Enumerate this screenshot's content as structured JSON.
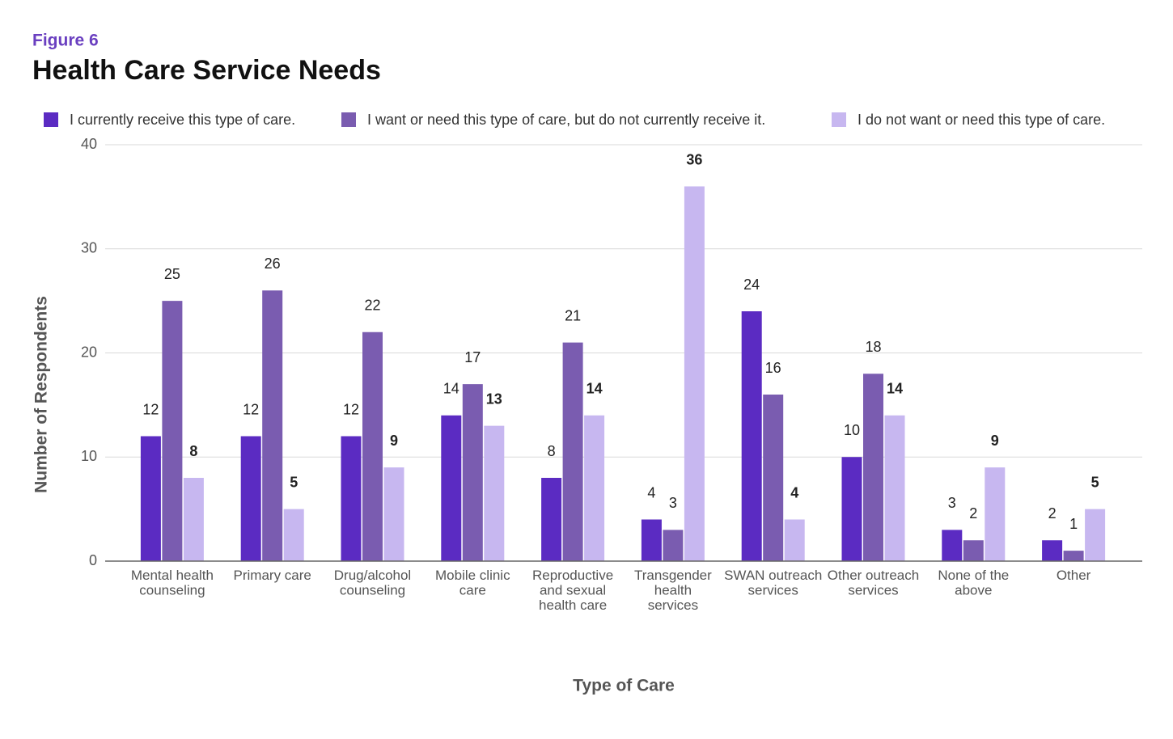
{
  "chart_data": {
    "type": "bar",
    "subtitle": "Figure 6",
    "title": "Health Care Service Needs",
    "x_label": "Type of Care",
    "y_label": "Number of Respondents",
    "categories": [
      "Mental health counseling",
      "Primary care",
      "Drug/alcohol counseling",
      "Mobile clinic care",
      "Reproductive and sexual health care",
      "Transgender health services",
      "SWAN outreach services",
      "Other outreach services",
      "None of the above",
      "Other"
    ],
    "series": [
      {
        "name": "I currently receive this type of care.",
        "color": "#5b2bc2",
        "values": [
          12,
          12,
          12,
          14,
          8,
          4,
          24,
          10,
          3,
          2
        ]
      },
      {
        "name": "I want or need this type of care, but do not currently receive it.",
        "color": "#7a5cb0",
        "values": [
          25,
          26,
          22,
          17,
          21,
          3,
          16,
          18,
          2,
          1
        ]
      },
      {
        "name": "I do not want or need this type of care.",
        "color": "#c7b7f0",
        "values": [
          8,
          5,
          9,
          13,
          14,
          36,
          4,
          14,
          9,
          5
        ]
      }
    ],
    "ylim": [
      0,
      40
    ],
    "yticks": [
      0,
      10,
      20,
      30,
      40
    ],
    "grid": true,
    "legend": "top"
  }
}
